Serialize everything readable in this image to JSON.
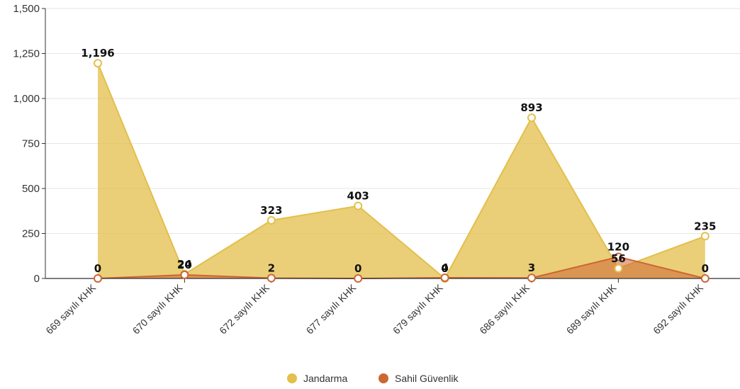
{
  "chart_data": {
    "type": "area",
    "categories": [
      "669 sayılı KHK",
      "670 sayılı KHK",
      "672 sayılı KHK",
      "677 sayılı KHK",
      "679 sayılı KHK",
      "686 sayılı KHK",
      "689 sayılı KHK",
      "692 sayılı KHK"
    ],
    "series": [
      {
        "name": "Jandarma",
        "values": [
          1196,
          24,
          323,
          403,
          0,
          893,
          56,
          235
        ],
        "labels": [
          "1,196",
          "24",
          "323",
          "403",
          "0",
          "893",
          "56",
          "235"
        ],
        "color": "#e3bf4b"
      },
      {
        "name": "Sahil Güvenlik",
        "values": [
          0,
          20,
          2,
          0,
          4,
          3,
          120,
          0
        ],
        "labels": [
          "0",
          "20",
          "2",
          "0",
          "4",
          "3",
          "120",
          "0"
        ],
        "color": "#cc6633"
      }
    ],
    "ylim": [
      0,
      1500
    ],
    "yticks": [
      0,
      250,
      500,
      750,
      1000,
      1250,
      1500
    ],
    "ytick_labels": [
      "0",
      "250",
      "500",
      "750",
      "1,000",
      "1,250",
      "1,500"
    ],
    "grid": true,
    "legend_position": "bottom-center"
  }
}
